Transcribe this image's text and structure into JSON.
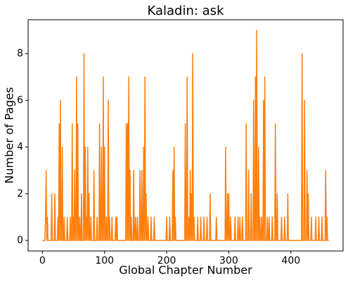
{
  "chart_data": {
    "type": "line",
    "title": "Kaladin: ask",
    "xlabel": "Global Chapter Number",
    "ylabel": "Number of Pages",
    "color": "#ff7f0e",
    "x": [
      0,
      4,
      5,
      6,
      7,
      8,
      9,
      14,
      15,
      16,
      19,
      20,
      21,
      24,
      25,
      26,
      27,
      28,
      29,
      30,
      31,
      32,
      33,
      34,
      35,
      36,
      39,
      40,
      41,
      44,
      45,
      46,
      47,
      48,
      49,
      50,
      51,
      52,
      53,
      54,
      55,
      56,
      57,
      58,
      59,
      60,
      61,
      62,
      63,
      64,
      66,
      67,
      68,
      69,
      70,
      71,
      72,
      73,
      74,
      75,
      76,
      77,
      78,
      79,
      82,
      83,
      84,
      87,
      88,
      89,
      91,
      92,
      93,
      94,
      95,
      96,
      97,
      98,
      99,
      100,
      101,
      102,
      103,
      104,
      105,
      106,
      107,
      108,
      109,
      111,
      112,
      113,
      117,
      118,
      119,
      120,
      121,
      134,
      135,
      136,
      137,
      138,
      139,
      140,
      141,
      142,
      143,
      144,
      146,
      147,
      148,
      149,
      150,
      151,
      152,
      153,
      154,
      156,
      157,
      158,
      159,
      160,
      161,
      162,
      163,
      164,
      165,
      166,
      167,
      168,
      169,
      170,
      171,
      174,
      175,
      176,
      179,
      180,
      181,
      199,
      200,
      201,
      204,
      205,
      206,
      209,
      210,
      211,
      212,
      213,
      214,
      215,
      229,
      230,
      231,
      232,
      233,
      234,
      235,
      236,
      237,
      238,
      239,
      240,
      241,
      242,
      243,
      244,
      245,
      249,
      250,
      251,
      254,
      255,
      256,
      259,
      260,
      261,
      264,
      265,
      266,
      269,
      270,
      271,
      279,
      280,
      281,
      294,
      295,
      296,
      297,
      298,
      299,
      300,
      301,
      302,
      303,
      304,
      309,
      310,
      311,
      314,
      315,
      316,
      317,
      318,
      319,
      321,
      322,
      323,
      327,
      328,
      329,
      331,
      332,
      333,
      335,
      336,
      337,
      339,
      340,
      341,
      342,
      343,
      344,
      345,
      346,
      347,
      348,
      349,
      350,
      351,
      352,
      353,
      354,
      355,
      356,
      357,
      358,
      359,
      361,
      362,
      363,
      364,
      365,
      366,
      369,
      370,
      371,
      374,
      375,
      376,
      377,
      378,
      379,
      384,
      385,
      386,
      389,
      390,
      391,
      394,
      395,
      396,
      417,
      418,
      419,
      421,
      422,
      423,
      425,
      426,
      427,
      428,
      429,
      432,
      433,
      434,
      439,
      440,
      441,
      444,
      445,
      446,
      449,
      450,
      451,
      455,
      456,
      457,
      458,
      459,
      461
    ],
    "values": [
      0,
      0,
      1,
      3,
      0,
      1,
      0,
      0,
      2,
      0,
      0,
      2,
      0,
      0,
      1,
      0,
      5,
      0,
      6,
      0,
      0,
      4,
      0,
      0,
      1,
      0,
      0,
      1,
      0,
      0,
      1,
      0,
      0,
      5,
      0,
      1,
      0,
      3,
      0,
      0,
      7,
      0,
      5,
      0,
      0,
      1,
      0,
      0,
      2,
      0,
      0,
      8,
      0,
      4,
      0,
      1,
      0,
      4,
      0,
      2,
      0,
      0,
      1,
      0,
      0,
      3,
      0,
      0,
      1,
      0,
      0,
      5,
      0,
      0,
      4,
      0,
      0,
      7,
      0,
      4,
      0,
      0,
      1,
      0,
      0,
      6,
      0,
      1,
      0,
      0,
      1,
      0,
      0,
      1,
      0,
      1,
      0,
      0,
      5,
      0,
      5,
      0,
      7,
      0,
      3,
      0,
      1,
      0,
      0,
      3,
      0,
      0,
      1,
      0,
      0,
      1,
      0,
      0,
      3,
      0,
      0,
      3,
      0,
      0,
      4,
      0,
      7,
      0,
      2,
      0,
      0,
      1,
      0,
      0,
      1,
      0,
      0,
      1,
      0,
      0,
      1,
      0,
      0,
      1,
      0,
      0,
      3,
      0,
      4,
      0,
      1,
      0,
      0,
      5,
      0,
      0,
      7,
      0,
      0,
      1,
      0,
      3,
      0,
      2,
      0,
      8,
      0,
      1,
      0,
      0,
      1,
      0,
      0,
      1,
      0,
      0,
      1,
      0,
      0,
      1,
      0,
      0,
      2,
      0,
      0,
      1,
      0,
      0,
      4,
      0,
      0,
      2,
      0,
      2,
      0,
      0,
      1,
      0,
      0,
      1,
      0,
      0,
      1,
      0,
      0,
      1,
      0,
      0,
      1,
      0,
      0,
      5,
      0,
      0,
      3,
      0,
      0,
      2,
      0,
      0,
      6,
      0,
      0,
      7,
      0,
      9,
      0,
      0,
      4,
      0,
      1,
      0,
      0,
      1,
      0,
      0,
      6,
      0,
      7,
      0,
      0,
      1,
      0,
      0,
      1,
      0,
      0,
      1,
      0,
      0,
      5,
      0,
      0,
      2,
      0,
      0,
      1,
      0,
      0,
      1,
      0,
      0,
      2,
      0,
      0,
      8,
      0,
      0,
      6,
      0,
      0,
      3,
      0,
      2,
      0,
      0,
      1,
      0,
      0,
      1,
      0,
      0,
      1,
      0,
      0,
      1,
      0,
      0,
      3,
      0,
      1,
      0,
      0
    ],
    "xlim": [
      -23,
      484
    ],
    "ylim": [
      -0.45,
      9.45
    ],
    "xticks": [
      0,
      100,
      200,
      300,
      400
    ],
    "yticks": [
      0,
      2,
      4,
      6,
      8
    ],
    "grid": false
  }
}
